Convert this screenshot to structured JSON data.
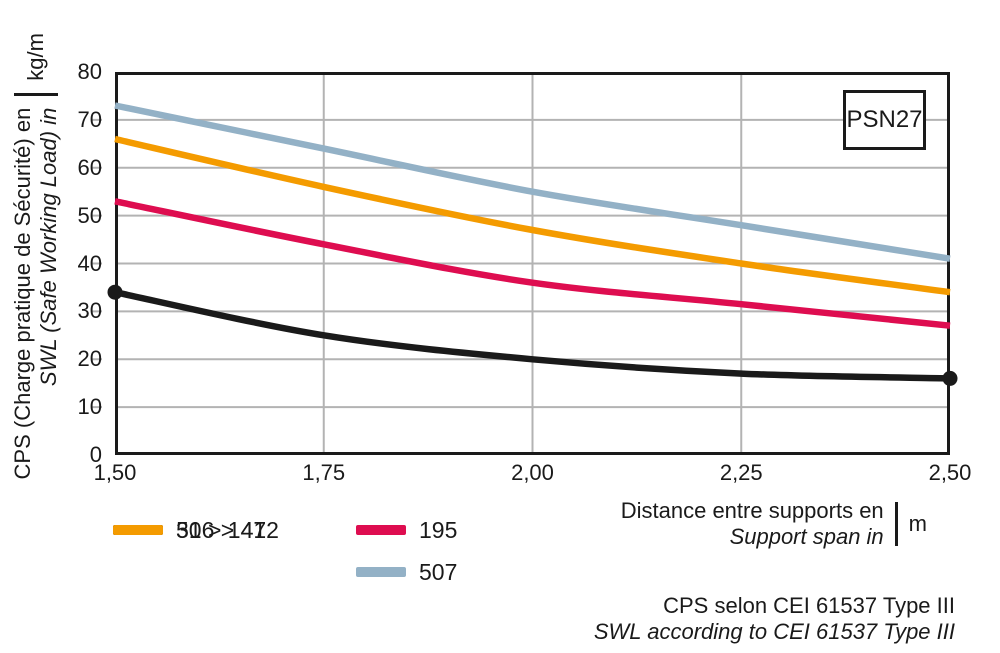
{
  "chart_data": {
    "type": "line",
    "x": [
      1.5,
      1.75,
      2.0,
      2.25,
      2.5
    ],
    "x_tick_labels": [
      "1,50",
      "1,75",
      "2,00",
      "2,25",
      "2,50"
    ],
    "y_ticks": [
      0,
      10,
      20,
      30,
      40,
      50,
      60,
      70,
      80
    ],
    "xlim": [
      1.5,
      2.5
    ],
    "ylim": [
      0,
      80
    ],
    "grid": true,
    "legend_position": "bottom-left",
    "series": [
      {
        "name": "50 > 147",
        "color": "#1a1a1a",
        "values": [
          34,
          25,
          20,
          17,
          16
        ],
        "end_dots": true
      },
      {
        "name": "316 > 412",
        "color": "#f49b00",
        "values": [
          66,
          56,
          47,
          40,
          34
        ],
        "end_dots": false
      },
      {
        "name": "195",
        "color": "#de0d50",
        "values": [
          53,
          44,
          36,
          31.5,
          27
        ],
        "end_dots": false
      },
      {
        "name": "507",
        "color": "#93b1c6",
        "values": [
          73,
          64,
          55,
          48,
          41
        ],
        "end_dots": false
      }
    ],
    "ylabel_fr": "CPS (Charge pratique de Sécurité) en",
    "ylabel_en": "SWL (Safe Working Load) in",
    "y_unit": "kg/m",
    "xlabel_fr": "Distance entre supports en",
    "xlabel_en": "Support span in",
    "x_unit": "m"
  },
  "annotation": {
    "label": "PSN27"
  },
  "legend": {
    "items": [
      {
        "label": "50 > 147",
        "color": "#1a1a1a"
      },
      {
        "label": "316 > 412",
        "color": "#f49b00"
      },
      {
        "label": "195",
        "color": "#de0d50"
      },
      {
        "label": "507",
        "color": "#93b1c6"
      }
    ]
  },
  "footnote": {
    "line1": "CPS selon CEI 61537 Type III",
    "line2": "SWL according to CEI 61537 Type III"
  },
  "colors": {
    "grid": "#b3b3b3",
    "frame": "#1a1a1a",
    "text": "#1a1a1a",
    "background": "#ffffff"
  }
}
